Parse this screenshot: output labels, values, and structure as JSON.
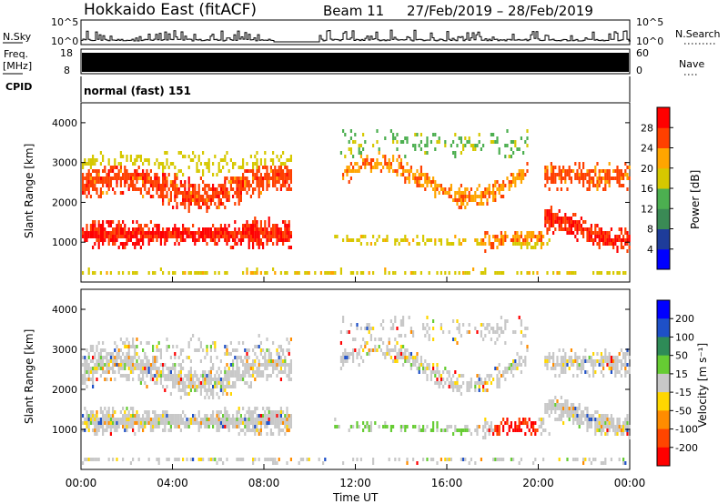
{
  "header": {
    "station": "Hokkaido East (fitACF)",
    "beam": "Beam 11",
    "date_range": "27/Feb/2019 – 28/Feb/2019"
  },
  "top_panels": {
    "nsky_label": "N.Sky",
    "nsky_ticks": [
      "10^5",
      "10^0"
    ],
    "nsky_right_ticks": [
      "10^5",
      "10^0"
    ],
    "nsearch_label": "N.Search",
    "freq_label_1": "Freq.",
    "freq_label_2": "[MHz]",
    "freq_ticks": [
      "18",
      "8"
    ],
    "nave_ticks": [
      "60",
      "0"
    ],
    "nave_label": "Nave",
    "cpid_label": "CPID",
    "cpid_text": "normal (fast) 151"
  },
  "chart_data": [
    {
      "type": "heatmap",
      "panel": "power",
      "ylabel": "Slant Range [km]",
      "xlabel": "",
      "xlim": [
        "00:00",
        "24:00"
      ],
      "ylim": [
        0,
        4500
      ],
      "y_ticks": [
        "1000",
        "2000",
        "3000",
        "4000"
      ],
      "colorbar": {
        "label": "Power [dB]",
        "ticks": [
          "4",
          "8",
          "12",
          "16",
          "20",
          "24",
          "28"
        ],
        "range": [
          0,
          32
        ],
        "colors": [
          "#0000ff",
          "#1e3c9a",
          "#3a8a55",
          "#4caf50",
          "#d6c800",
          "#ffa500",
          "#ff4000",
          "#ff0000"
        ]
      }
    },
    {
      "type": "heatmap",
      "panel": "velocity",
      "ylabel": "Slant Range [km]",
      "xlabel": "Time UT",
      "xlim": [
        "00:00",
        "24:00"
      ],
      "ylim": [
        0,
        4500
      ],
      "y_ticks": [
        "1000",
        "2000",
        "3000",
        "4000"
      ],
      "x_ticks": [
        "00:00",
        "04:00",
        "08:00",
        "12:00",
        "16:00",
        "20:00",
        "00:00"
      ],
      "colorbar": {
        "label": "Velocity [m s⁻¹]",
        "ticks": [
          "200",
          "100",
          "50",
          "15",
          "-15",
          "-50",
          "-100",
          "-200"
        ],
        "colors": [
          "#0000ff",
          "#1e50c8",
          "#2e8b57",
          "#66cc33",
          "#c8c8c8",
          "#ffd700",
          "#ff8c00",
          "#ff4500",
          "#ff0000"
        ]
      }
    }
  ]
}
